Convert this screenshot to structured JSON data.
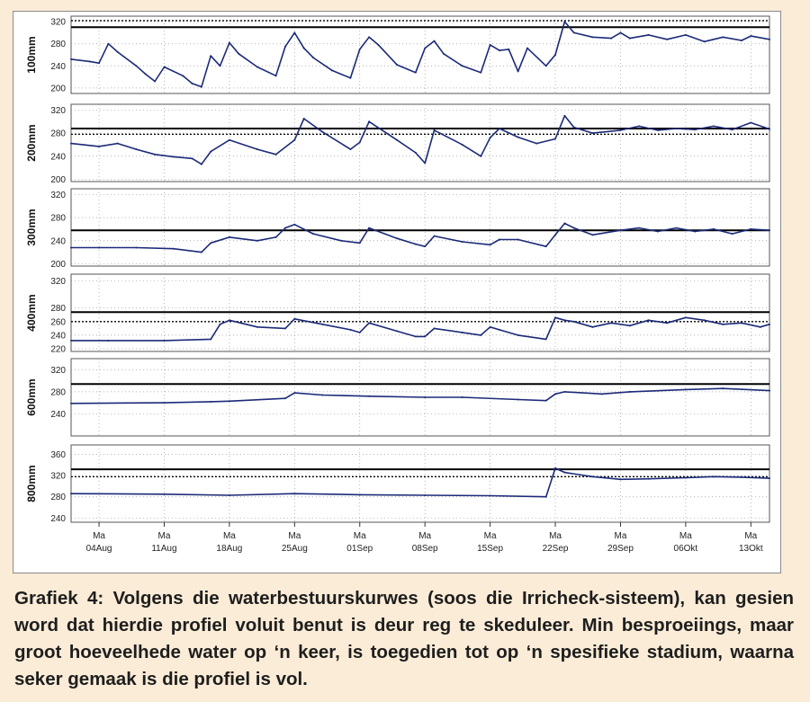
{
  "caption": "Grafiek 4: Volgens die waterbestuurskurwes (soos die Irricheck-sisteem), kan gesien word dat hierdie profiel voluit benut is deur reg te skeduleer. Min besproeiings, maar groot hoeveelhede water op ‘n keer, is toegedien tot op ‘n spesifieke stadium, waarna seker gemaak is die profiel is vol.",
  "colors": {
    "line": "#1c2a78",
    "refline": "#000000",
    "grid": "#9a9a9a",
    "background": "#fbecd7"
  },
  "x_axis": {
    "day_label": "Ma",
    "ticks": [
      "04Aug",
      "11Aug",
      "18Aug",
      "25Aug",
      "01Sep",
      "08Sep",
      "15Sep",
      "22Sep",
      "29Sep",
      "06Okt",
      "13Okt"
    ]
  },
  "chart_data": [
    {
      "type": "line",
      "ylabel": "100mm",
      "ylim": [
        190,
        330
      ],
      "yticks": [
        200,
        240,
        280,
        320
      ],
      "reference_lines": {
        "solid": 310,
        "dashed": 322
      },
      "grid": "dotted",
      "x": [
        "01Aug",
        "03Aug",
        "04Aug",
        "05Aug",
        "06Aug",
        "08Aug",
        "09Aug",
        "10Aug",
        "11Aug",
        "13Aug",
        "14Aug",
        "15Aug",
        "16Aug",
        "17Aug",
        "18Aug",
        "19Aug",
        "21Aug",
        "23Aug",
        "24Aug",
        "25Aug",
        "26Aug",
        "27Aug",
        "29Aug",
        "31Aug",
        "01Sep",
        "02Sep",
        "03Sep",
        "05Sep",
        "07Sep",
        "08Sep",
        "09Sep",
        "10Sep",
        "12Sep",
        "14Sep",
        "15Sep",
        "16Sep",
        "17Sep",
        "18Sep",
        "19Sep",
        "21Sep",
        "22Sep",
        "23Sep",
        "24Sep",
        "26Sep",
        "28Sep",
        "29Sep",
        "30Sep",
        "02Okt",
        "04Okt",
        "06Okt",
        "08Okt",
        "10Okt",
        "12Okt",
        "13Okt",
        "15Okt"
      ],
      "values": [
        252,
        248,
        245,
        280,
        265,
        240,
        225,
        212,
        238,
        222,
        208,
        202,
        258,
        240,
        282,
        262,
        238,
        222,
        275,
        300,
        272,
        255,
        232,
        218,
        270,
        292,
        278,
        242,
        228,
        272,
        285,
        262,
        240,
        228,
        278,
        268,
        270,
        230,
        272,
        240,
        260,
        320,
        300,
        292,
        290,
        300,
        290,
        296,
        288,
        296,
        284,
        292,
        286,
        294,
        288
      ]
    },
    {
      "type": "line",
      "ylabel": "200mm",
      "ylim": [
        196,
        330
      ],
      "yticks": [
        200,
        240,
        280,
        320
      ],
      "reference_lines": {
        "solid": 288,
        "dashed": 278
      },
      "grid": "dotted",
      "x": [
        "01Aug",
        "04Aug",
        "06Aug",
        "08Aug",
        "10Aug",
        "12Aug",
        "14Aug",
        "15Aug",
        "16Aug",
        "18Aug",
        "21Aug",
        "23Aug",
        "25Aug",
        "26Aug",
        "28Aug",
        "31Aug",
        "01Sep",
        "02Sep",
        "05Sep",
        "07Sep",
        "08Sep",
        "09Sep",
        "12Sep",
        "14Sep",
        "15Sep",
        "16Sep",
        "18Sep",
        "20Sep",
        "22Sep",
        "23Sep",
        "24Sep",
        "26Sep",
        "29Sep",
        "01Okt",
        "03Okt",
        "05Okt",
        "07Okt",
        "09Okt",
        "11Okt",
        "13Okt",
        "15Okt"
      ],
      "values": [
        262,
        257,
        262,
        252,
        243,
        239,
        236,
        226,
        248,
        268,
        252,
        243,
        268,
        305,
        282,
        252,
        264,
        300,
        268,
        246,
        228,
        285,
        260,
        240,
        272,
        288,
        273,
        262,
        270,
        310,
        290,
        280,
        285,
        292,
        285,
        288,
        286,
        292,
        286,
        298,
        287
      ]
    },
    {
      "type": "line",
      "ylabel": "300mm",
      "ylim": [
        196,
        330
      ],
      "yticks": [
        200,
        240,
        280,
        320
      ],
      "reference_lines": {
        "solid": 258,
        "dashed": 258
      },
      "grid": "dotted",
      "x": [
        "01Aug",
        "04Aug",
        "08Aug",
        "12Aug",
        "15Aug",
        "16Aug",
        "18Aug",
        "21Aug",
        "23Aug",
        "24Aug",
        "25Aug",
        "27Aug",
        "30Aug",
        "01Sep",
        "02Sep",
        "05Sep",
        "07Sep",
        "08Sep",
        "09Sep",
        "12Sep",
        "15Sep",
        "16Sep",
        "18Sep",
        "21Sep",
        "22Sep",
        "23Sep",
        "24Sep",
        "26Sep",
        "29Sep",
        "01Okt",
        "03Okt",
        "05Okt",
        "07Okt",
        "09Okt",
        "11Okt",
        "13Okt",
        "15Okt"
      ],
      "values": [
        228,
        228,
        228,
        226,
        220,
        236,
        246,
        240,
        246,
        262,
        268,
        252,
        240,
        236,
        262,
        244,
        234,
        230,
        248,
        238,
        233,
        242,
        242,
        230,
        250,
        270,
        262,
        250,
        258,
        262,
        256,
        262,
        256,
        260,
        252,
        260,
        258
      ]
    },
    {
      "type": "line",
      "ylabel": "400mm",
      "ylim": [
        216,
        330
      ],
      "yticks": [
        220,
        240,
        260,
        280,
        320
      ],
      "reference_lines": {
        "solid": 274,
        "dashed": 260
      },
      "grid": "dotted",
      "x": [
        "01Aug",
        "05Aug",
        "11Aug",
        "16Aug",
        "17Aug",
        "18Aug",
        "21Aug",
        "24Aug",
        "25Aug",
        "28Aug",
        "31Aug",
        "01Sep",
        "02Sep",
        "05Sep",
        "07Sep",
        "08Sep",
        "09Sep",
        "12Sep",
        "14Sep",
        "15Sep",
        "16Sep",
        "18Sep",
        "21Sep",
        "22Sep",
        "23Sep",
        "24Sep",
        "26Sep",
        "28Sep",
        "30Sep",
        "02Okt",
        "04Okt",
        "06Okt",
        "08Okt",
        "10Okt",
        "12Okt",
        "14Okt",
        "15Okt"
      ],
      "values": [
        232,
        232,
        232,
        234,
        256,
        262,
        252,
        250,
        264,
        256,
        248,
        244,
        258,
        246,
        238,
        238,
        250,
        244,
        240,
        252,
        248,
        240,
        234,
        266,
        262,
        260,
        252,
        258,
        254,
        262,
        258,
        266,
        262,
        256,
        258,
        252,
        256
      ]
    },
    {
      "type": "line",
      "ylabel": "600mm",
      "ylim": [
        200,
        340
      ],
      "yticks": [
        240,
        280,
        320
      ],
      "reference_lines": {
        "solid": 294,
        "dashed": 294
      },
      "grid": "dotted",
      "x": [
        "01Aug",
        "11Aug",
        "16Aug",
        "18Aug",
        "24Aug",
        "25Aug",
        "28Aug",
        "02Sep",
        "08Sep",
        "12Sep",
        "18Sep",
        "21Sep",
        "22Sep",
        "23Sep",
        "27Sep",
        "30Sep",
        "06Okt",
        "10Okt",
        "15Okt"
      ],
      "values": [
        259,
        260,
        262,
        263,
        268,
        278,
        274,
        272,
        270,
        270,
        266,
        264,
        276,
        280,
        276,
        280,
        284,
        286,
        282
      ]
    },
    {
      "type": "line",
      "ylabel": "800mm",
      "ylim": [
        232,
        378
      ],
      "yticks": [
        240,
        280,
        320,
        360
      ],
      "reference_lines": {
        "solid": 332,
        "dashed": 318
      },
      "grid": "dotted",
      "x": [
        "01Aug",
        "11Aug",
        "18Aug",
        "25Aug",
        "01Sep",
        "08Sep",
        "15Sep",
        "21Sep",
        "22Sep",
        "23Sep",
        "26Sep",
        "29Sep",
        "02Okt",
        "06Okt",
        "09Okt",
        "12Okt",
        "15Okt"
      ],
      "values": [
        286,
        285,
        283,
        286,
        284,
        283,
        282,
        280,
        334,
        326,
        318,
        313,
        314,
        316,
        318,
        317,
        315
      ]
    }
  ]
}
